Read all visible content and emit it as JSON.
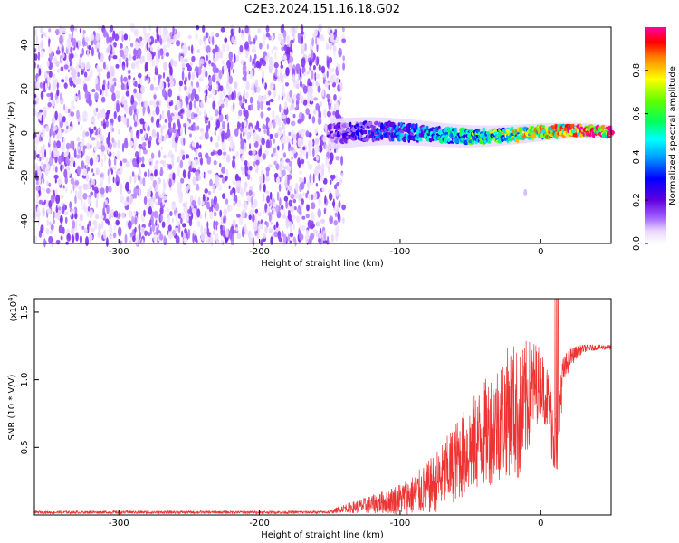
{
  "chart_data": [
    {
      "type": "heatmap",
      "title": "C2E3.2024.151.16.18.G02",
      "xlabel": "Height of straight line (km)",
      "ylabel": "Frequency (Hz)",
      "xlim": [
        -360,
        50
      ],
      "ylim": [
        -50,
        48
      ],
      "x_ticks": [
        "-300",
        "-200",
        "-100",
        "0"
      ],
      "y_ticks": [
        "-40",
        "-20",
        "0",
        "20",
        "40"
      ],
      "colorbar": {
        "label": "Normalized spectral amplitude",
        "range": [
          0,
          1
        ],
        "ticks": [
          "0.0",
          "0.2",
          "0.4",
          "0.6",
          "0.8"
        ],
        "colormap": [
          "#ffffff",
          "#e8d4ff",
          "#a060ff",
          "#6000e0",
          "#0000ff",
          "#00a0ff",
          "#00ffff",
          "#00ff60",
          "#60ff00",
          "#ffff00",
          "#ff8000",
          "#ff0000",
          "#ff00a0"
        ]
      },
      "regions": [
        {
          "x_range": [
            -360,
            -140
          ],
          "freq_range": [
            -50,
            48
          ],
          "level": 0.1
        },
        {
          "x_range": [
            -150,
            50
          ],
          "freq_center": 0,
          "freq_halfwidth_start": 7,
          "freq_halfwidth_end": 3,
          "level_start": 0.2,
          "level_end": 0.9
        },
        {
          "x_range": [
            -12,
            -10
          ],
          "freq_range": [
            -28,
            -26
          ],
          "level": 0.1
        }
      ]
    },
    {
      "type": "line",
      "title": "",
      "xlabel": "Height of straight line (km)",
      "ylabel": "SNR (10 * V/V)",
      "y_multiplier": "(x10",
      "y_multiplier_exp": "4",
      "y_multiplier_close": ")",
      "xlim": [
        -360,
        50
      ],
      "ylim": [
        0,
        1.6
      ],
      "x_ticks": [
        "-300",
        "-200",
        "-100",
        "0"
      ],
      "y_ticks": [
        "0.5",
        "1.0",
        "1.5"
      ],
      "series": [
        {
          "color": "#ee3333",
          "x": [
            -360,
            -300,
            -250,
            -200,
            -150,
            -140,
            -130,
            -120,
            -110,
            -100,
            -90,
            -80,
            -70,
            -60,
            -50,
            -40,
            -30,
            -20,
            -15,
            -10,
            -5,
            0,
            5,
            10,
            12,
            14,
            16,
            20,
            25,
            30,
            40,
            50
          ],
          "y": [
            0.02,
            0.02,
            0.02,
            0.02,
            0.02,
            0.05,
            0.06,
            0.08,
            0.1,
            0.12,
            0.15,
            0.2,
            0.28,
            0.4,
            0.5,
            0.6,
            0.7,
            0.8,
            0.7,
            0.85,
            0.95,
            1.0,
            0.85,
            0.55,
            0.3,
            0.9,
            1.05,
            1.15,
            1.2,
            1.23,
            1.24,
            1.24
          ],
          "noise": [
            0.01,
            0.01,
            0.01,
            0.01,
            0.01,
            0.03,
            0.05,
            0.07,
            0.09,
            0.12,
            0.15,
            0.2,
            0.25,
            0.3,
            0.35,
            0.4,
            0.45,
            0.5,
            0.5,
            0.45,
            0.35,
            0.25,
            0.25,
            0.3,
            0.25,
            0.25,
            0.12,
            0.08,
            0.05,
            0.03,
            0.02,
            0.02
          ]
        }
      ]
    }
  ]
}
